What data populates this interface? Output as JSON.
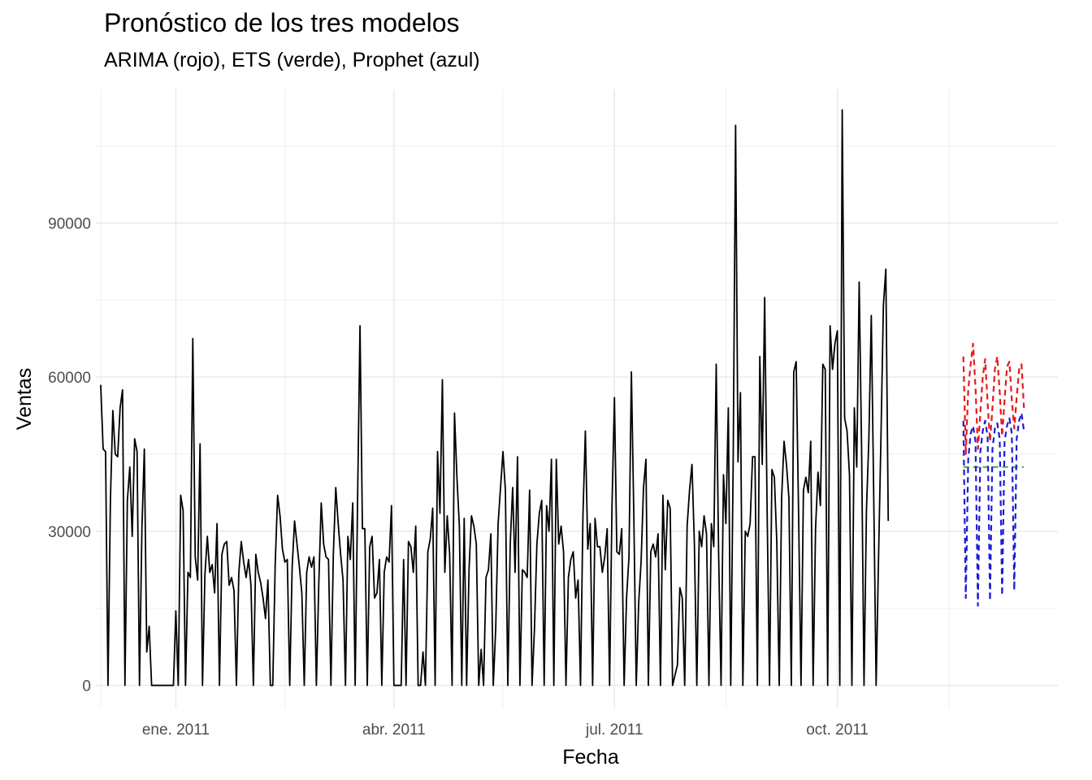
{
  "chart_data": {
    "type": "line",
    "title": "Pronóstico de los tres modelos",
    "subtitle": "ARIMA (rojo), ETS (verde), Prophet (azul)",
    "xlabel": "Fecha",
    "ylabel": "Ventas",
    "x_scale": "date",
    "xlim": [
      "2010-11-29",
      "2011-12-31"
    ],
    "ylim": [
      -4500,
      116000
    ],
    "x_ticks": [
      {
        "date": "2011-01-01",
        "label": "ene. 2011"
      },
      {
        "date": "2011-04-01",
        "label": "abr. 2011"
      },
      {
        "date": "2011-07-01",
        "label": "jul. 2011"
      },
      {
        "date": "2011-10-01",
        "label": "oct. 2011"
      }
    ],
    "x_minor_ticks": [
      "2010-12-01",
      "2011-02-15",
      "2011-05-16",
      "2011-08-16",
      "2011-11-16"
    ],
    "y_ticks": [
      0,
      30000,
      60000,
      90000
    ],
    "y_minor_ticks": [
      15000,
      45000,
      75000,
      105000
    ],
    "grid": true,
    "series": [
      {
        "color": "#000000",
        "dash": "solid",
        "start_date": "2010-12-01",
        "values": [
          58500,
          46000,
          45500,
          0,
          36000,
          53500,
          45000,
          44500,
          54000,
          57500,
          0,
          36000,
          42500,
          29000,
          48000,
          45500,
          0,
          30500,
          46000,
          6500,
          11500,
          0,
          0,
          0,
          0,
          0,
          0,
          0,
          0,
          0,
          0,
          14500,
          0,
          37000,
          34000,
          0,
          22000,
          21000,
          67500,
          25000,
          20500,
          47000,
          0,
          21500,
          29000,
          22000,
          23500,
          18000,
          31500,
          0,
          25500,
          27500,
          28000,
          19500,
          21000,
          18500,
          0,
          22000,
          28000,
          24000,
          21000,
          24500,
          19500,
          0,
          25500,
          22000,
          20000,
          17000,
          13000,
          20500,
          0,
          0,
          23500,
          37000,
          33000,
          26500,
          24000,
          24500,
          0,
          23000,
          32000,
          27500,
          23000,
          18000,
          0,
          22000,
          25000,
          23000,
          25000,
          0,
          20000,
          35500,
          27500,
          25000,
          24500,
          0,
          25500,
          38500,
          31500,
          25500,
          20500,
          0,
          29000,
          24500,
          35500,
          0,
          36000,
          70000,
          30500,
          30500,
          0,
          27000,
          29000,
          17000,
          18000,
          24500,
          0,
          22000,
          25000,
          24000,
          35000,
          0,
          0,
          0,
          0,
          24500,
          0,
          28000,
          27000,
          22000,
          31000,
          0,
          0,
          6500,
          0,
          26000,
          28500,
          34500,
          0,
          45500,
          33500,
          59500,
          22000,
          33000,
          25500,
          0,
          53000,
          40500,
          31000,
          0,
          32500,
          0,
          22500,
          33000,
          31000,
          27500,
          0,
          7000,
          0,
          21000,
          22500,
          29500,
          0,
          11000,
          31500,
          38500,
          45500,
          38000,
          0,
          27500,
          38500,
          22000,
          44500,
          0,
          22500,
          22000,
          21000,
          38000,
          0,
          11000,
          27500,
          33500,
          36000,
          0,
          35000,
          30000,
          44000,
          0,
          44000,
          27500,
          31000,
          26000,
          0,
          21000,
          24500,
          26000,
          17000,
          20500,
          0,
          33000,
          49500,
          26500,
          31500,
          0,
          32500,
          27000,
          27000,
          22000,
          25000,
          30500,
          0,
          35000,
          56000,
          26000,
          25500,
          30500,
          0,
          17000,
          25000,
          61000,
          33000,
          0,
          16000,
          24000,
          38500,
          44000,
          0,
          26000,
          27500,
          25000,
          29500,
          0,
          37000,
          22500,
          36000,
          34500,
          0,
          2000,
          4000,
          19000,
          17000,
          0,
          31000,
          38000,
          43000,
          27500,
          0,
          30000,
          27000,
          33000,
          29500,
          0,
          31500,
          27000,
          62500,
          25500,
          0,
          41000,
          31500,
          54000,
          0,
          43000,
          109000,
          43500,
          57000,
          0,
          30000,
          29000,
          31500,
          44500,
          44500,
          0,
          64000,
          43000,
          75500,
          34500,
          0,
          42000,
          40500,
          28000,
          0,
          36500,
          47500,
          43000,
          36500,
          0,
          61000,
          63000,
          33500,
          0,
          38000,
          40500,
          37500,
          47500,
          0,
          30500,
          41500,
          35000,
          62500,
          61500,
          0,
          70000,
          61500,
          66500,
          69000,
          0,
          112000,
          52000,
          49500,
          41000,
          0,
          54000,
          42500,
          78500,
          46000,
          0,
          34000,
          48000,
          72000,
          37000,
          0,
          25000,
          48500,
          74000,
          81000,
          32000
        ]
      },
      {
        "color": "#e41a1c",
        "dash": "dashed",
        "start_date": "2011-11-22",
        "values": [
          64000,
          45000,
          57500,
          62500,
          66500,
          58000,
          46000,
          53000,
          60000,
          63500,
          55000,
          47500,
          54000,
          61500,
          64000,
          57000,
          48500,
          55500,
          62000,
          63000,
          55500,
          50000,
          56000,
          61500,
          62500,
          54000
        ]
      },
      {
        "color": "#1c1cd8",
        "dash": "dashed",
        "start_date": "2011-11-22",
        "values": [
          51500,
          17000,
          44000,
          49000,
          50500,
          47500,
          15500,
          45500,
          49500,
          51500,
          48500,
          16500,
          46000,
          50000,
          51000,
          48000,
          17500,
          47500,
          50500,
          52000,
          49000,
          18500,
          48000,
          51500,
          53000,
          49500
        ]
      },
      {
        "color": "#4daf4a",
        "dash": "dashed",
        "start_date": "2011-11-22",
        "values": [
          42500,
          42500,
          42500,
          42500,
          42500,
          42500,
          42500,
          42500,
          42500,
          42500,
          42500,
          42500,
          42500,
          42500,
          42500,
          42500,
          42500,
          42500,
          42500,
          42500,
          42500,
          42500,
          42500,
          42500,
          42500,
          42500
        ]
      }
    ]
  }
}
